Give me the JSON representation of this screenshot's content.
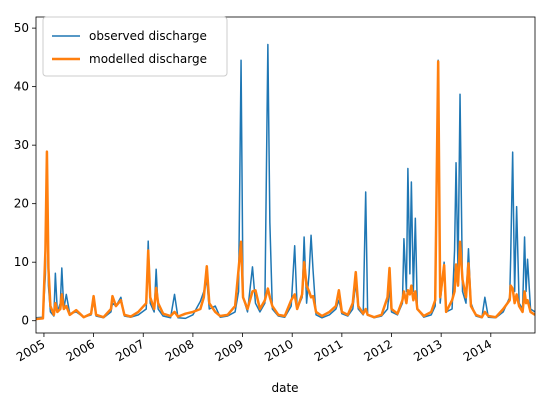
{
  "chart_data": {
    "type": "line",
    "x_label": "date",
    "x": [
      2004.84,
      2004.98,
      2005.03,
      2005.06,
      2005.09,
      2005.13,
      2005.2,
      2005.23,
      2005.27,
      2005.33,
      2005.36,
      2005.4,
      2005.45,
      2005.52,
      2005.65,
      2005.8,
      2005.95,
      2006,
      2006.05,
      2006.2,
      2006.35,
      2006.38,
      2006.45,
      2006.55,
      2006.62,
      2006.75,
      2006.9,
      2007.06,
      2007.1,
      2007.14,
      2007.22,
      2007.26,
      2007.3,
      2007.4,
      2007.55,
      2007.63,
      2007.7,
      2007.85,
      2008,
      2008.15,
      2008.22,
      2008.28,
      2008.33,
      2008.45,
      2008.55,
      2008.7,
      2008.85,
      2008.92,
      2008.97,
      2009.01,
      2009.1,
      2009.2,
      2009.26,
      2009.35,
      2009.45,
      2009.51,
      2009.55,
      2009.6,
      2009.72,
      2009.85,
      2009.98,
      2010.05,
      2010.1,
      2010.2,
      2010.24,
      2010.29,
      2010.34,
      2010.38,
      2010.42,
      2010.48,
      2010.6,
      2010.75,
      2010.88,
      2010.94,
      2011,
      2011.12,
      2011.22,
      2011.28,
      2011.33,
      2011.43,
      2011.48,
      2011.52,
      2011.65,
      2011.8,
      2011.92,
      2011.96,
      2012,
      2012.12,
      2012.22,
      2012.25,
      2012.3,
      2012.33,
      2012.37,
      2012.4,
      2012.44,
      2012.48,
      2012.52,
      2012.65,
      2012.8,
      2012.88,
      2012.94,
      2012.98,
      2013.06,
      2013.1,
      2013.22,
      2013.27,
      2013.3,
      2013.34,
      2013.38,
      2013.43,
      2013.5,
      2013.55,
      2013.6,
      2013.7,
      2013.82,
      2013.88,
      2013.95,
      2014.1,
      2014.25,
      2014.38,
      2014.4,
      2014.44,
      2014.48,
      2014.52,
      2014.57,
      2014.64,
      2014.68,
      2014.71,
      2014.74,
      2014.8,
      2014.89
    ],
    "series": [
      {
        "name": "observed discharge",
        "color": "#1f77b4",
        "width": 1.5,
        "values": [
          0.5,
          0.6,
          8,
          28,
          6,
          1.5,
          0.8,
          8.1,
          1.5,
          3,
          9,
          2,
          4.5,
          1.2,
          1.5,
          0.6,
          1,
          3.5,
          0.8,
          0.5,
          1.5,
          3,
          2.5,
          4,
          0.8,
          0.6,
          1,
          2,
          13.6,
          3,
          1.5,
          8.8,
          2,
          0.8,
          0.5,
          4.5,
          0.5,
          0.4,
          1,
          3.3,
          5,
          7,
          2,
          2.5,
          0.6,
          0.8,
          1.5,
          5,
          44.5,
          4,
          1.5,
          9.2,
          3,
          1.5,
          3,
          47.2,
          16.8,
          2,
          0.8,
          0.6,
          2.5,
          12.8,
          2,
          4,
          14.3,
          3,
          8,
          14.6,
          8.6,
          1,
          0.5,
          1,
          2,
          3.5,
          1.2,
          0.8,
          2,
          6.5,
          2,
          1,
          22,
          1,
          0.5,
          0.8,
          2,
          5.5,
          1.5,
          1,
          3,
          14,
          5,
          26,
          8,
          23.7,
          5,
          17.5,
          2,
          0.6,
          1,
          2.5,
          44.5,
          3,
          10,
          1.5,
          2,
          12,
          27,
          8,
          38.7,
          5,
          3,
          12.3,
          3,
          0.8,
          0.5,
          4,
          0.6,
          0.5,
          1.5,
          4,
          10.7,
          28.8,
          5,
          19.5,
          3,
          2,
          14.3,
          5,
          10.5,
          2,
          1.5
        ]
      },
      {
        "name": "modelled discharge",
        "color": "#ff7f0e",
        "width": 2.5,
        "values": [
          0.3,
          0.4,
          12,
          28.9,
          9,
          2.5,
          1,
          3,
          1.5,
          2,
          4.5,
          2,
          2.5,
          1,
          1.8,
          0.6,
          1.2,
          4.2,
          1,
          0.6,
          2,
          4.2,
          2.5,
          3.5,
          1,
          0.7,
          1.5,
          3,
          12,
          4,
          2,
          5.6,
          3,
          1.2,
          0.8,
          1.5,
          0.7,
          1.2,
          1.5,
          2,
          4,
          9.3,
          3,
          1.5,
          0.8,
          1,
          2.5,
          8.8,
          13.5,
          4,
          2,
          5,
          5.2,
          2,
          3.5,
          5.5,
          4,
          2.5,
          1,
          0.8,
          3.5,
          4.5,
          2,
          4.5,
          10,
          6,
          5,
          4,
          4.2,
          1.5,
          0.8,
          1.5,
          2.5,
          5.2,
          1.5,
          1,
          3,
          8.3,
          2.5,
          1.2,
          2,
          1,
          0.6,
          1,
          4,
          9,
          2,
          1.2,
          3.5,
          5,
          3,
          5.2,
          4.5,
          6,
          3.5,
          5,
          2,
          0.8,
          1.5,
          3.5,
          44.3,
          4,
          9.5,
          1.5,
          3.5,
          5,
          9.6,
          6,
          13.5,
          7,
          4,
          9.8,
          2.5,
          1,
          0.6,
          1.5,
          0.8,
          0.6,
          2,
          3.5,
          6,
          5.5,
          3,
          4.5,
          2.5,
          1.5,
          5,
          3,
          3.5,
          1.5,
          1
        ]
      }
    ],
    "xlim": [
      2004.84,
      2014.89
    ],
    "xticks": [
      2005,
      2006,
      2007,
      2008,
      2009,
      2010,
      2011,
      2012,
      2013,
      2014
    ],
    "ylim": [
      -2.1,
      51.9
    ],
    "yticks": [
      0,
      10,
      20,
      30,
      40,
      50
    ],
    "legend": "upper left"
  }
}
